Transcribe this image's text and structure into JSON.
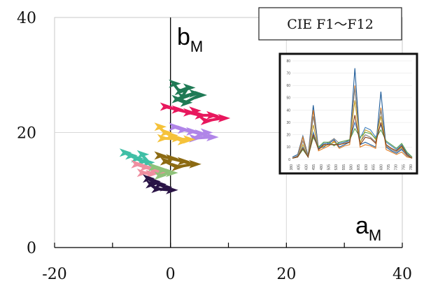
{
  "chart_data": {
    "type": "scatter",
    "title": "",
    "xlim": [
      -20,
      40
    ],
    "ylim": [
      0,
      40
    ],
    "x_ticks": [
      "-20",
      "0",
      "20",
      "40"
    ],
    "y_ticks": [
      "0",
      "20",
      "40"
    ],
    "xlabel": {
      "main": "a",
      "sub": "M"
    },
    "ylabel": {
      "main": "b",
      "sub": "M"
    },
    "grid": true,
    "legend_box": "CIE F1～F12",
    "series": [
      {
        "color": "#1f7a55",
        "points": [
          [
            0.5,
            28.5
          ],
          [
            1.5,
            27.2
          ],
          [
            3,
            27.8
          ],
          [
            2,
            26.2
          ],
          [
            4,
            26.8
          ],
          [
            1,
            25.8
          ],
          [
            2.5,
            25.2
          ],
          [
            5,
            26.5
          ]
        ]
      },
      {
        "color": "#e8175d",
        "points": [
          [
            -1,
            24.5
          ],
          [
            1,
            24.0
          ],
          [
            3,
            23.5
          ],
          [
            5,
            23.0
          ],
          [
            7,
            23.0
          ],
          [
            9,
            22.5
          ],
          [
            6,
            22.0
          ],
          [
            4,
            23.8
          ]
        ]
      },
      {
        "color": "#b085e8",
        "points": [
          [
            0.5,
            21.0
          ],
          [
            2,
            20.5
          ],
          [
            3.5,
            20.2
          ],
          [
            5,
            19.8
          ],
          [
            7,
            19.2
          ],
          [
            4,
            19.0
          ],
          [
            6,
            20.0
          ]
        ]
      },
      {
        "color": "#f5c23a",
        "points": [
          [
            -2,
            21.0
          ],
          [
            -1,
            20.0
          ],
          [
            0,
            19.5
          ],
          [
            1,
            19.0
          ],
          [
            2,
            18.5
          ],
          [
            3,
            18.8
          ],
          [
            -1.5,
            19.0
          ]
        ]
      },
      {
        "color": "#3fbfa6",
        "points": [
          [
            -8,
            16.5
          ],
          [
            -7,
            16.0
          ],
          [
            -6,
            15.5
          ],
          [
            -5,
            15.0
          ],
          [
            -4,
            14.8
          ],
          [
            -3,
            14.0
          ],
          [
            -5,
            16.2
          ]
        ]
      },
      {
        "color": "#8c6a12",
        "points": [
          [
            -2,
            16.0
          ],
          [
            0,
            15.5
          ],
          [
            2,
            15.0
          ],
          [
            4,
            14.5
          ],
          [
            1,
            14.0
          ],
          [
            -1,
            15.0
          ]
        ]
      },
      {
        "color": "#ef8fa0",
        "points": [
          [
            -6,
            14.5
          ],
          [
            -4.5,
            14.0
          ],
          [
            -3,
            13.5
          ],
          [
            -1.5,
            13.0
          ],
          [
            -5,
            13.0
          ],
          [
            -3.5,
            12.8
          ]
        ]
      },
      {
        "color": "#8fc27a",
        "points": [
          [
            -3,
            14.0
          ],
          [
            -1.5,
            13.5
          ],
          [
            0,
            13.0
          ],
          [
            -2,
            12.5
          ]
        ]
      },
      {
        "color": "#2a1446",
        "points": [
          [
            -4,
            12.0
          ],
          [
            -3,
            11.5
          ],
          [
            -2,
            11.0
          ],
          [
            -1,
            10.5
          ],
          [
            0,
            10.0
          ],
          [
            -2.5,
            10.2
          ],
          [
            -3.5,
            11.0
          ]
        ]
      }
    ],
    "inset": {
      "type": "line",
      "yticks": [
        "0",
        "10",
        "20",
        "30",
        "40",
        "50",
        "60",
        "70",
        "80"
      ],
      "xticks": [
        "380",
        "405",
        "430",
        "455",
        "480",
        "505",
        "530",
        "555",
        "580",
        "605",
        "630",
        "655",
        "680",
        "705",
        "730",
        "755",
        "780"
      ],
      "ylim": [
        0,
        80
      ],
      "series": [
        {
          "color": "#1f5c99",
          "values": [
            2,
            4,
            19,
            3,
            44,
            9,
            10,
            13,
            16,
            10,
            12,
            14,
            74,
            12,
            14,
            12,
            10,
            55,
            10,
            7,
            5,
            8,
            3,
            1
          ]
        },
        {
          "color": "#e07b1f",
          "values": [
            1,
            3,
            18,
            2,
            40,
            7,
            9,
            11,
            15,
            9,
            11,
            12,
            60,
            10,
            12,
            11,
            9,
            42,
            8,
            6,
            4,
            6,
            2,
            1
          ]
        },
        {
          "color": "#808080",
          "values": [
            1,
            3,
            15,
            3,
            35,
            10,
            12,
            14,
            17,
            13,
            14,
            16,
            58,
            14,
            20,
            18,
            14,
            40,
            11,
            8,
            6,
            9,
            3,
            1
          ]
        },
        {
          "color": "#c9a227",
          "values": [
            1,
            2,
            12,
            2,
            28,
            8,
            11,
            12,
            14,
            12,
            13,
            14,
            48,
            13,
            24,
            22,
            16,
            35,
            12,
            9,
            7,
            10,
            4,
            1
          ]
        },
        {
          "color": "#3f7fbf",
          "values": [
            1,
            2,
            10,
            2,
            22,
            9,
            13,
            13,
            12,
            13,
            14,
            15,
            30,
            17,
            26,
            24,
            18,
            28,
            14,
            11,
            8,
            12,
            5,
            2
          ]
        },
        {
          "color": "#5aa04a",
          "values": [
            1,
            2,
            8,
            2,
            18,
            10,
            14,
            14,
            11,
            14,
            15,
            16,
            25,
            18,
            22,
            21,
            17,
            24,
            15,
            12,
            9,
            13,
            6,
            2
          ]
        },
        {
          "color": "#8a3d13",
          "values": [
            1,
            2,
            9,
            2,
            20,
            8,
            12,
            12,
            12,
            12,
            13,
            14,
            36,
            12,
            18,
            17,
            13,
            30,
            12,
            9,
            7,
            11,
            4,
            1
          ]
        }
      ]
    }
  }
}
